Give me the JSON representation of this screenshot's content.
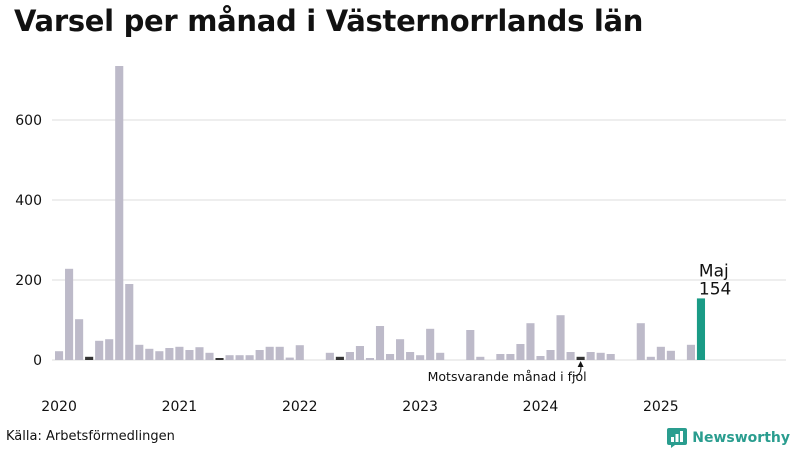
{
  "title": "Varsel per månad i Västernorrlands län",
  "source": "Källa: Arbetsförmedlingen",
  "brand": "Newsworthy",
  "brand_icon": "newsworthy-chart-icon",
  "colors": {
    "bar": "#bdbac9",
    "bar_prior_year": "#333333",
    "bar_latest": "#1a9b86",
    "grid": "#dddddd",
    "brand": "#2a9d8f"
  },
  "chart_data": {
    "type": "bar",
    "title": "Varsel per månad i Västernorrlands län",
    "xlabel": "",
    "ylabel": "",
    "ylim": [
      0,
      750
    ],
    "xlim": [
      "2020-01",
      "2026-12"
    ],
    "yticks": [
      0,
      200,
      400,
      600
    ],
    "xticks": [
      {
        "value": "2020-01",
        "label": "2020"
      },
      {
        "value": "2021-01",
        "label": "2021"
      },
      {
        "value": "2022-01",
        "label": "2022"
      },
      {
        "value": "2023-01",
        "label": "2023"
      },
      {
        "value": "2024-01",
        "label": "2024"
      },
      {
        "value": "2025-01",
        "label": "2025"
      }
    ],
    "grid": true,
    "categories": [
      "2020-01",
      "2020-02",
      "2020-03",
      "2020-04",
      "2020-05",
      "2020-06",
      "2020-07",
      "2020-08",
      "2020-09",
      "2020-10",
      "2020-11",
      "2020-12",
      "2021-01",
      "2021-02",
      "2021-03",
      "2021-04",
      "2021-05",
      "2021-06",
      "2021-07",
      "2021-08",
      "2021-09",
      "2021-10",
      "2021-11",
      "2021-12",
      "2022-01",
      "2022-02",
      "2022-03",
      "2022-04",
      "2022-05",
      "2022-06",
      "2022-07",
      "2022-08",
      "2022-09",
      "2022-10",
      "2022-11",
      "2022-12",
      "2023-01",
      "2023-02",
      "2023-03",
      "2023-04",
      "2023-05",
      "2023-06",
      "2023-07",
      "2023-08",
      "2023-09",
      "2023-10",
      "2023-11",
      "2023-12",
      "2024-01",
      "2024-02",
      "2024-03",
      "2024-04",
      "2024-05",
      "2024-06",
      "2024-07",
      "2024-08",
      "2024-09",
      "2024-10",
      "2024-11",
      "2024-12",
      "2025-01",
      "2025-02",
      "2025-03",
      "2025-04",
      "2025-05"
    ],
    "values": [
      22,
      228,
      102,
      8,
      48,
      52,
      735,
      190,
      38,
      28,
      22,
      30,
      33,
      25,
      32,
      18,
      5,
      12,
      12,
      12,
      25,
      33,
      33,
      6,
      37,
      0,
      0,
      18,
      8,
      20,
      35,
      5,
      85,
      15,
      52,
      20,
      12,
      78,
      18,
      0,
      0,
      75,
      8,
      0,
      15,
      15,
      40,
      92,
      10,
      25,
      112,
      20,
      8,
      20,
      18,
      15,
      0,
      0,
      92,
      8,
      33,
      23,
      0,
      38,
      154
    ],
    "prior_year_months": [
      "2020-04",
      "2021-05",
      "2022-05",
      "2024-05"
    ],
    "latest": {
      "month": "2025-05",
      "label": "Maj",
      "value": 154
    },
    "note": "Motsvarande månad i fjol"
  }
}
